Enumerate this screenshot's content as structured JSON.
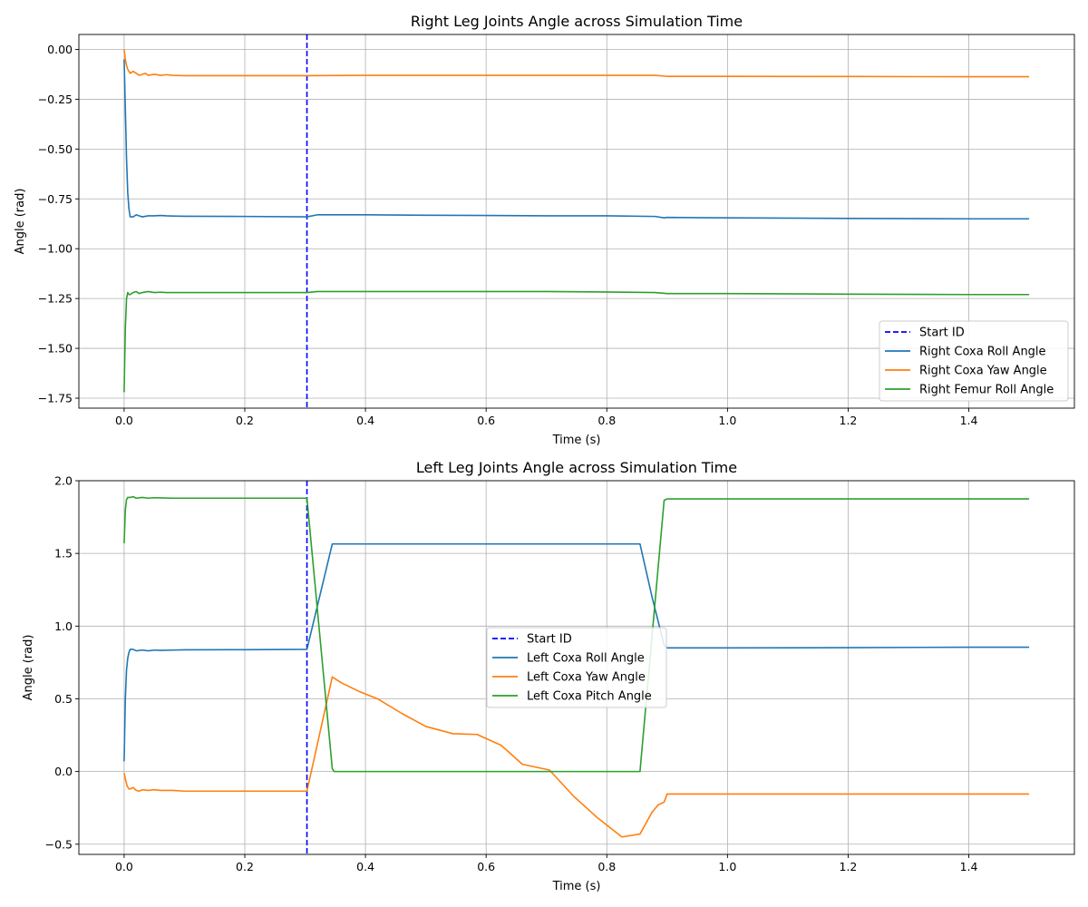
{
  "chart_data": [
    {
      "type": "line",
      "title": "Right Leg Joints Angle across Simulation Time",
      "xlabel": "Time (s)",
      "ylabel": "Angle (rad)",
      "xlim": [
        -0.075,
        1.575
      ],
      "ylim": [
        -1.8,
        0.075
      ],
      "xticks": [
        0.0,
        0.2,
        0.4,
        0.6,
        0.8,
        1.0,
        1.2,
        1.4
      ],
      "xtick_labels": [
        "0.0",
        "0.2",
        "0.4",
        "0.6",
        "0.8",
        "1.0",
        "1.2",
        "1.4"
      ],
      "yticks": [
        0.0,
        -0.25,
        -0.5,
        -0.75,
        -1.0,
        -1.25,
        -1.5,
        -1.75
      ],
      "ytick_labels": [
        "0.00",
        "−0.25",
        "−0.50",
        "−0.75",
        "−1.00",
        "−1.25",
        "−1.50",
        "−1.75"
      ],
      "grid": true,
      "legend_position": "lower right",
      "vline": {
        "name": "Start ID",
        "x": 0.303,
        "color": "#0000ff",
        "style": "dashed"
      },
      "series": [
        {
          "name": "Right Coxa Roll Angle",
          "color": "#1f77b4",
          "x": [
            0,
            0.002,
            0.004,
            0.006,
            0.008,
            0.01,
            0.015,
            0.02,
            0.025,
            0.03,
            0.04,
            0.05,
            0.06,
            0.07,
            0.08,
            0.1,
            0.2,
            0.303,
            0.32,
            0.4,
            0.5,
            0.6,
            0.7,
            0.8,
            0.88,
            0.895,
            0.9,
            1.0,
            1.2,
            1.4,
            1.5
          ],
          "y": [
            -0.05,
            -0.3,
            -0.55,
            -0.72,
            -0.8,
            -0.84,
            -0.84,
            -0.83,
            -0.835,
            -0.84,
            -0.835,
            -0.835,
            -0.833,
            -0.835,
            -0.836,
            -0.837,
            -0.838,
            -0.84,
            -0.83,
            -0.83,
            -0.832,
            -0.833,
            -0.835,
            -0.835,
            -0.838,
            -0.845,
            -0.843,
            -0.845,
            -0.848,
            -0.85,
            -0.85
          ]
        },
        {
          "name": "Right Coxa Yaw Angle",
          "color": "#ff7f0e",
          "x": [
            0,
            0.002,
            0.004,
            0.006,
            0.008,
            0.01,
            0.015,
            0.02,
            0.025,
            0.03,
            0.035,
            0.04,
            0.05,
            0.06,
            0.07,
            0.08,
            0.1,
            0.2,
            0.303,
            0.4,
            0.5,
            0.6,
            0.7,
            0.8,
            0.88,
            0.9,
            1.0,
            1.2,
            1.4,
            1.5
          ],
          "y": [
            0.0,
            -0.05,
            -0.08,
            -0.1,
            -0.11,
            -0.12,
            -0.11,
            -0.12,
            -0.13,
            -0.125,
            -0.12,
            -0.13,
            -0.125,
            -0.13,
            -0.127,
            -0.13,
            -0.132,
            -0.132,
            -0.132,
            -0.13,
            -0.13,
            -0.13,
            -0.13,
            -0.13,
            -0.13,
            -0.135,
            -0.135,
            -0.136,
            -0.137,
            -0.137
          ]
        },
        {
          "name": "Right Femur Roll Angle",
          "color": "#2ca02c",
          "x": [
            0,
            0.002,
            0.004,
            0.006,
            0.008,
            0.01,
            0.015,
            0.02,
            0.025,
            0.03,
            0.04,
            0.05,
            0.06,
            0.07,
            0.08,
            0.1,
            0.2,
            0.303,
            0.32,
            0.4,
            0.5,
            0.6,
            0.7,
            0.8,
            0.88,
            0.9,
            1.0,
            1.2,
            1.4,
            1.5
          ],
          "y": [
            -1.72,
            -1.4,
            -1.25,
            -1.22,
            -1.23,
            -1.23,
            -1.22,
            -1.215,
            -1.225,
            -1.22,
            -1.215,
            -1.22,
            -1.218,
            -1.22,
            -1.22,
            -1.22,
            -1.22,
            -1.22,
            -1.215,
            -1.215,
            -1.215,
            -1.215,
            -1.215,
            -1.217,
            -1.22,
            -1.225,
            -1.225,
            -1.228,
            -1.23,
            -1.23
          ]
        }
      ]
    },
    {
      "type": "line",
      "title": "Left Leg Joints Angle across Simulation Time",
      "xlabel": "Time (s)",
      "ylabel": "Angle (rad)",
      "xlim": [
        -0.075,
        1.575
      ],
      "ylim": [
        -0.57,
        2.0
      ],
      "xticks": [
        0.0,
        0.2,
        0.4,
        0.6,
        0.8,
        1.0,
        1.2,
        1.4
      ],
      "xtick_labels": [
        "0.0",
        "0.2",
        "0.4",
        "0.6",
        "0.8",
        "1.0",
        "1.2",
        "1.4"
      ],
      "yticks": [
        2.0,
        1.5,
        1.0,
        0.5,
        0.0,
        -0.5
      ],
      "ytick_labels": [
        "2.0",
        "1.5",
        "1.0",
        "0.5",
        "0.0",
        "−0.5"
      ],
      "grid": true,
      "legend_position": "center",
      "vline": {
        "name": "Start ID",
        "x": 0.303,
        "color": "#0000ff",
        "style": "dashed"
      },
      "series": [
        {
          "name": "Left Coxa Roll Angle",
          "color": "#1f77b4",
          "x": [
            0,
            0.002,
            0.004,
            0.006,
            0.008,
            0.01,
            0.015,
            0.02,
            0.03,
            0.04,
            0.05,
            0.06,
            0.08,
            0.1,
            0.2,
            0.303,
            0.345,
            0.4,
            0.6,
            0.8,
            0.855,
            0.875,
            0.895,
            0.9,
            1.0,
            1.2,
            1.4,
            1.5
          ],
          "y": [
            0.07,
            0.5,
            0.7,
            0.78,
            0.82,
            0.84,
            0.84,
            0.83,
            0.835,
            0.83,
            0.835,
            0.833,
            0.835,
            0.837,
            0.838,
            0.84,
            1.565,
            1.565,
            1.565,
            1.565,
            1.565,
            1.2,
            0.87,
            0.85,
            0.85,
            0.852,
            0.855,
            0.855
          ]
        },
        {
          "name": "Left Coxa Yaw Angle",
          "color": "#ff7f0e",
          "x": [
            0,
            0.002,
            0.005,
            0.008,
            0.01,
            0.015,
            0.02,
            0.025,
            0.03,
            0.04,
            0.05,
            0.06,
            0.07,
            0.08,
            0.1,
            0.2,
            0.303,
            0.345,
            0.36,
            0.39,
            0.42,
            0.46,
            0.5,
            0.545,
            0.585,
            0.625,
            0.66,
            0.705,
            0.745,
            0.785,
            0.825,
            0.855,
            0.875,
            0.885,
            0.895,
            0.9,
            1.0,
            1.2,
            1.4,
            1.5
          ],
          "y": [
            -0.01,
            -0.05,
            -0.1,
            -0.12,
            -0.12,
            -0.11,
            -0.13,
            -0.135,
            -0.125,
            -0.13,
            -0.125,
            -0.13,
            -0.13,
            -0.13,
            -0.135,
            -0.135,
            -0.135,
            0.65,
            0.61,
            0.55,
            0.5,
            0.4,
            0.31,
            0.26,
            0.255,
            0.18,
            0.05,
            0.01,
            -0.17,
            -0.32,
            -0.45,
            -0.43,
            -0.28,
            -0.23,
            -0.21,
            -0.155,
            -0.155,
            -0.155,
            -0.155,
            -0.155
          ]
        },
        {
          "name": "Left Coxa Pitch Angle",
          "color": "#2ca02c",
          "x": [
            0,
            0.002,
            0.004,
            0.006,
            0.008,
            0.01,
            0.015,
            0.02,
            0.03,
            0.04,
            0.05,
            0.06,
            0.08,
            0.1,
            0.2,
            0.303,
            0.345,
            0.348,
            0.4,
            0.6,
            0.8,
            0.855,
            0.895,
            0.9,
            1.0,
            1.2,
            1.4,
            1.5
          ],
          "y": [
            1.57,
            1.8,
            1.87,
            1.885,
            1.885,
            1.885,
            1.89,
            1.88,
            1.885,
            1.88,
            1.883,
            1.882,
            1.88,
            1.88,
            1.88,
            1.88,
            0.02,
            0.0,
            0.0,
            0.0,
            0.0,
            0.0,
            1.865,
            1.875,
            1.875,
            1.875,
            1.875,
            1.875
          ]
        }
      ]
    }
  ]
}
